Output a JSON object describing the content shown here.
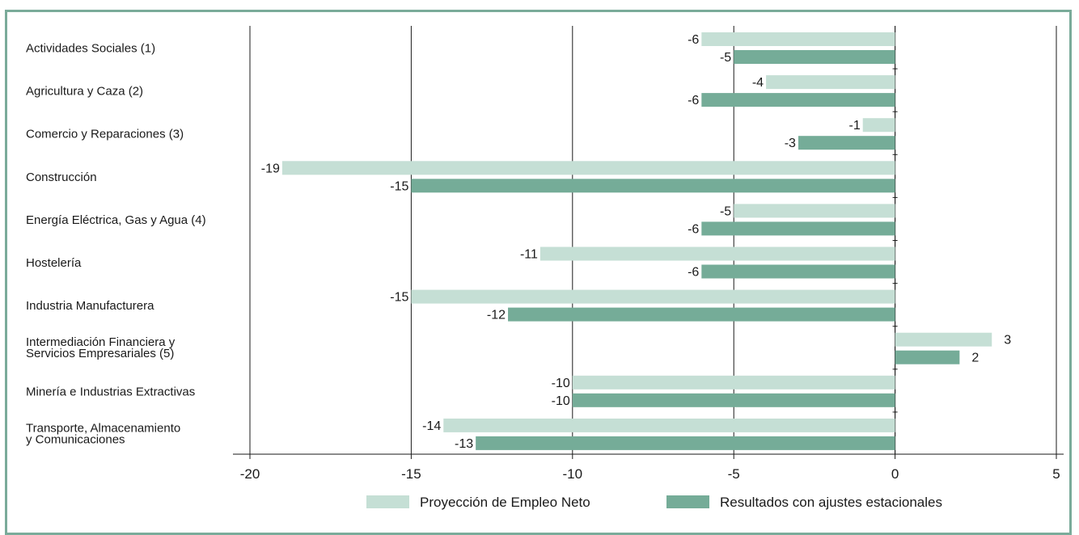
{
  "chart_data": {
    "type": "bar",
    "orientation": "horizontal",
    "categories": [
      [
        "Actividades Sociales (1)"
      ],
      [
        "Agricultura y Caza (2)"
      ],
      [
        "Comercio y Reparaciones (3)"
      ],
      [
        "Construcción"
      ],
      [
        "Energía Eléctrica, Gas y Agua (4)"
      ],
      [
        "Hostelería"
      ],
      [
        "Industria Manufacturera"
      ],
      [
        "Intermediación Financiera y",
        "Servicios Empresariales (5)"
      ],
      [
        "Minería e Industrias Extractivas"
      ],
      [
        "Transporte, Almacenamiento",
        "y Comunicaciones"
      ]
    ],
    "series": [
      {
        "name": "Proyección de Empleo Neto",
        "color": "#c5dfd5",
        "values": [
          -6,
          -4,
          -1,
          -19,
          -5,
          -11,
          -15,
          3,
          -10,
          -14
        ]
      },
      {
        "name": "Resultados con ajustes estacionales",
        "color": "#75ac98",
        "values": [
          -5,
          -6,
          -3,
          -15,
          -6,
          -6,
          -12,
          2,
          -10,
          -13
        ]
      }
    ],
    "xlim": [
      -20,
      5
    ],
    "xticks": [
      -20,
      -15,
      -10,
      -5,
      0,
      5
    ],
    "grid": true,
    "legend_position": "bottom"
  }
}
